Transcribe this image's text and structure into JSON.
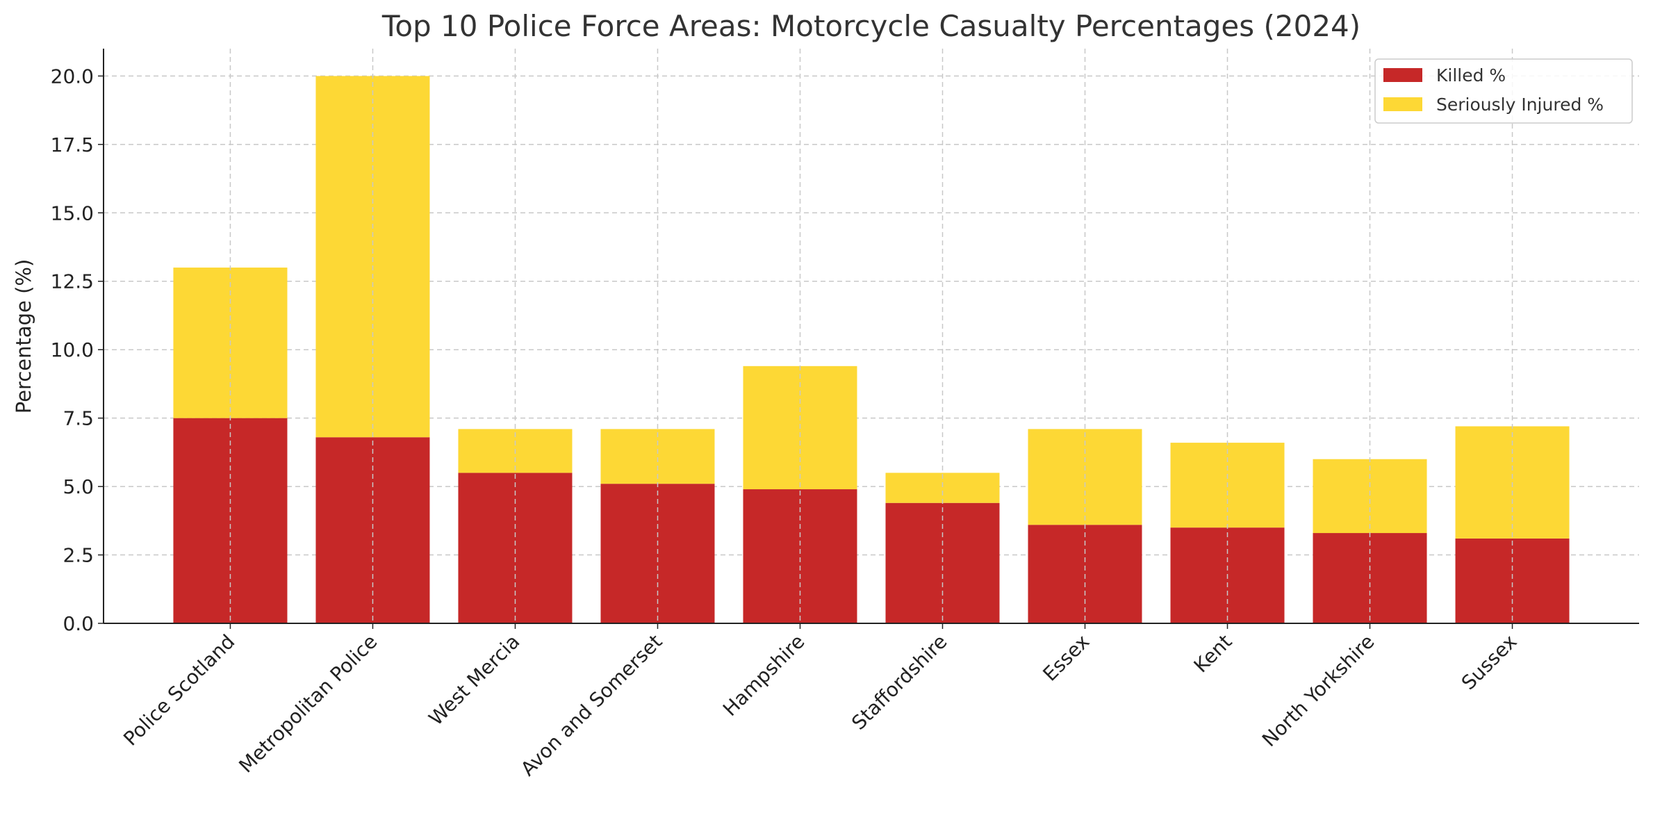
{
  "chart_data": {
    "type": "bar",
    "stacked": true,
    "title": "Top 10 Police Force Areas: Motorcycle Casualty Percentages (2024)",
    "xlabel": "",
    "ylabel": "Percentage (%)",
    "ylim": [
      0,
      21
    ],
    "yticks": [
      "0.0",
      "2.5",
      "5.0",
      "7.5",
      "10.0",
      "12.5",
      "15.0",
      "17.5",
      "20.0"
    ],
    "grid": true,
    "legend_position": "top-right",
    "categories": [
      "Police Scotland",
      "Metropolitan Police",
      "West Mercia",
      "Avon and Somerset",
      "Hampshire",
      "Staffordshire",
      "Essex",
      "Kent",
      "North Yorkshire",
      "Sussex"
    ],
    "series": [
      {
        "name": "Killed %",
        "color": "#C62828",
        "values": [
          7.5,
          6.8,
          5.5,
          5.1,
          4.9,
          4.4,
          3.6,
          3.5,
          3.3,
          3.1
        ]
      },
      {
        "name": "Seriously Injured %",
        "color": "#FDD835",
        "values": [
          5.5,
          13.2,
          1.6,
          2.0,
          4.5,
          1.1,
          3.5,
          3.1,
          2.7,
          4.1
        ]
      }
    ]
  }
}
